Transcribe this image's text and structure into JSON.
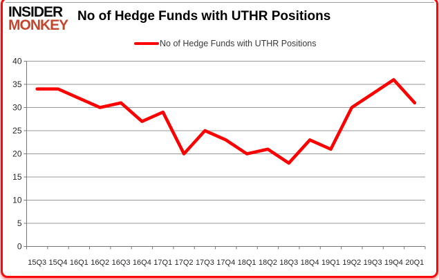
{
  "logo": {
    "line1": "INSIDER",
    "line2": "MONKEY"
  },
  "header": {
    "title": "No of Hedge Funds with UTHR Positions"
  },
  "legend": {
    "label": "No of Hedge Funds with UTHR Positions",
    "line_color": "#ff0000"
  },
  "colors": {
    "series": "#ff0000",
    "gridline": "#969696",
    "axis": "#767676",
    "tick": "#767676",
    "label_text": "#262626",
    "frame_border": "#f90909",
    "inner_border": "#9b9b9b",
    "logo_top": "#0d0d0d",
    "logo_bottom": "#c4462d"
  },
  "chart_data": {
    "type": "line",
    "title": "No of Hedge Funds with UTHR Positions",
    "categories": [
      "15Q3",
      "15Q4",
      "16Q1",
      "16Q2",
      "16Q3",
      "16Q4",
      "17Q1",
      "17Q2",
      "17Q3",
      "17Q4",
      "18Q1",
      "18Q2",
      "18Q3",
      "18Q4",
      "19Q1",
      "19Q2",
      "19Q3",
      "19Q4",
      "20Q1"
    ],
    "series": [
      {
        "name": "No of Hedge Funds with UTHR Positions",
        "color": "#ff0000",
        "values": [
          34,
          34,
          32,
          30,
          31,
          27,
          29,
          20,
          25,
          23,
          20,
          21,
          18,
          23,
          21,
          30,
          33,
          36,
          31
        ]
      }
    ],
    "xlabel": "",
    "ylabel": "",
    "ylim": [
      0,
      40
    ],
    "ytick_step": 5,
    "grid": true,
    "legend_position": "top-center"
  }
}
